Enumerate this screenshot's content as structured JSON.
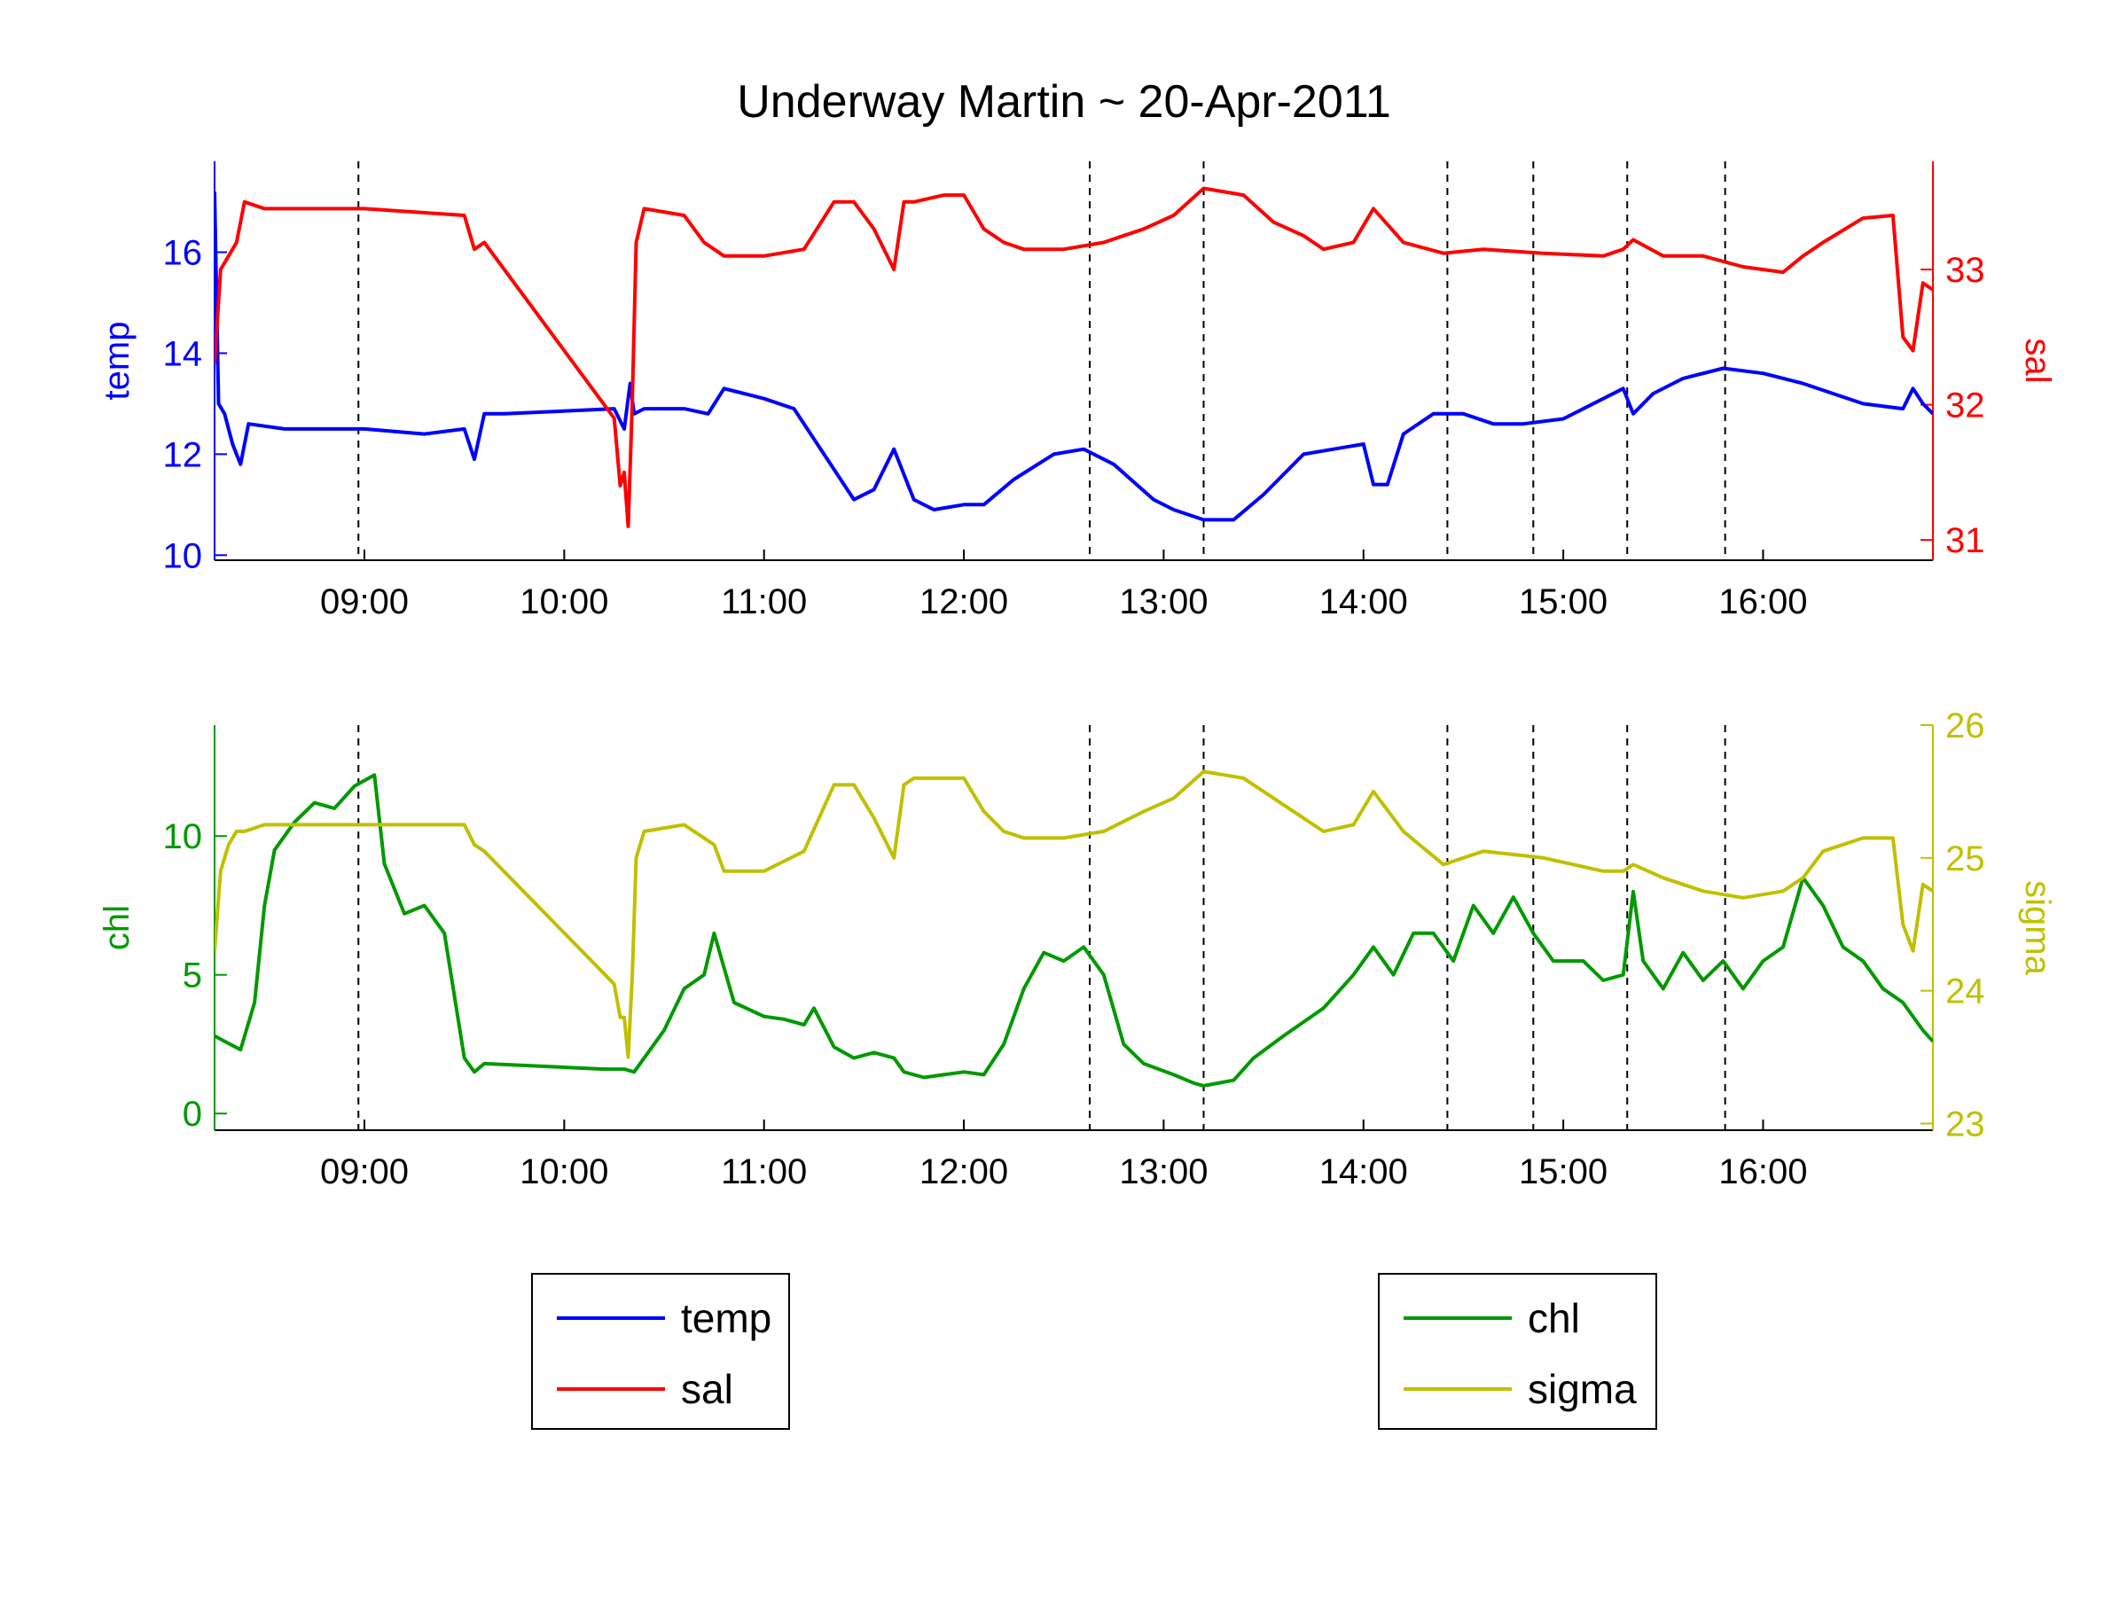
{
  "chart_data": {
    "type": "line",
    "title": "Underway Martin ~ 20-Apr-2011",
    "x_range_hours": [
      8.25,
      16.85
    ],
    "x_ticks": [
      "09:00",
      "10:00",
      "11:00",
      "12:00",
      "13:00",
      "14:00",
      "15:00",
      "16:00"
    ],
    "x_tick_hours": [
      9,
      10,
      11,
      12,
      13,
      14,
      15,
      16
    ],
    "event_markers_hours": [
      8.97,
      12.63,
      13.2,
      14.42,
      14.85,
      15.32,
      15.81
    ],
    "panels": [
      {
        "left_axis": {
          "label": "temp",
          "color": "#0000ff",
          "ylim": [
            9.9,
            17.8
          ],
          "ticks": [
            10,
            12,
            14,
            16
          ]
        },
        "right_axis": {
          "label": "sal",
          "color": "#ff0000",
          "ylim": [
            30.85,
            33.8
          ],
          "ticks": [
            31,
            32,
            33
          ]
        },
        "series": [
          {
            "name": "temp",
            "axis": "left",
            "color": "#0000ff",
            "x": [
              8.25,
              8.27,
              8.3,
              8.34,
              8.38,
              8.42,
              8.6,
              9.0,
              9.3,
              9.5,
              9.55,
              9.6,
              9.7,
              10.25,
              10.3,
              10.33,
              10.35,
              10.4,
              10.6,
              10.72,
              10.8,
              10.9,
              11.0,
              11.15,
              11.3,
              11.45,
              11.55,
              11.65,
              11.75,
              11.85,
              12.0,
              12.1,
              12.25,
              12.45,
              12.6,
              12.75,
              12.95,
              13.05,
              13.2,
              13.35,
              13.5,
              13.7,
              13.85,
              14.0,
              14.05,
              14.12,
              14.2,
              14.35,
              14.5,
              14.65,
              14.8,
              15.0,
              15.2,
              15.3,
              15.35,
              15.45,
              15.6,
              15.8,
              16.0,
              16.2,
              16.5,
              16.7,
              16.75,
              16.8,
              16.85
            ],
            "y": [
              17.2,
              13.0,
              12.8,
              12.2,
              11.8,
              12.6,
              12.5,
              12.5,
              12.4,
              12.5,
              11.9,
              12.8,
              12.8,
              12.9,
              12.5,
              13.4,
              12.8,
              12.9,
              12.9,
              12.8,
              13.3,
              13.2,
              13.1,
              12.9,
              12.0,
              11.1,
              11.3,
              12.1,
              11.1,
              10.9,
              11.0,
              11.0,
              11.5,
              12.0,
              12.1,
              11.8,
              11.1,
              10.9,
              10.7,
              10.7,
              11.2,
              12.0,
              12.1,
              12.2,
              11.4,
              11.4,
              12.4,
              12.8,
              12.8,
              12.6,
              12.6,
              12.7,
              13.1,
              13.3,
              12.8,
              13.2,
              13.5,
              13.7,
              13.6,
              13.4,
              13.0,
              12.9,
              13.3,
              13.0,
              12.8
            ]
          },
          {
            "name": "sal",
            "axis": "right",
            "color": "#ff0000",
            "x": [
              8.25,
              8.28,
              8.32,
              8.36,
              8.4,
              8.5,
              9.0,
              9.5,
              9.55,
              9.6,
              10.25,
              10.28,
              10.3,
              10.32,
              10.34,
              10.36,
              10.4,
              10.6,
              10.7,
              10.75,
              10.8,
              11.0,
              11.2,
              11.35,
              11.45,
              11.55,
              11.65,
              11.7,
              11.75,
              11.9,
              12.0,
              12.1,
              12.2,
              12.3,
              12.5,
              12.7,
              12.9,
              13.05,
              13.2,
              13.4,
              13.55,
              13.7,
              13.8,
              13.95,
              14.05,
              14.2,
              14.4,
              14.6,
              14.9,
              15.2,
              15.3,
              15.35,
              15.5,
              15.7,
              15.9,
              16.1,
              16.2,
              16.3,
              16.5,
              16.65,
              16.7,
              16.75,
              16.8,
              16.85
            ],
            "y": [
              32.3,
              33.0,
              33.1,
              33.2,
              33.5,
              33.45,
              33.45,
              33.4,
              33.15,
              33.2,
              31.9,
              31.4,
              31.5,
              31.1,
              32.0,
              33.2,
              33.45,
              33.4,
              33.2,
              33.15,
              33.1,
              33.1,
              33.15,
              33.5,
              33.5,
              33.3,
              33.0,
              33.5,
              33.5,
              33.55,
              33.55,
              33.3,
              33.2,
              33.15,
              33.15,
              33.2,
              33.3,
              33.4,
              33.6,
              33.55,
              33.35,
              33.25,
              33.15,
              33.2,
              33.45,
              33.2,
              33.12,
              33.15,
              33.12,
              33.1,
              33.15,
              33.22,
              33.1,
              33.1,
              33.02,
              32.98,
              33.1,
              33.2,
              33.38,
              33.4,
              32.5,
              32.4,
              32.9,
              32.85
            ]
          }
        ]
      },
      {
        "left_axis": {
          "label": "chl",
          "color": "#009900",
          "ylim": [
            -0.6,
            14.0
          ],
          "ticks": [
            0,
            5,
            10
          ]
        },
        "right_axis": {
          "label": "sigma",
          "color": "#c0c000",
          "ylim": [
            22.95,
            26.0
          ],
          "ticks": [
            23,
            24,
            25,
            26
          ]
        },
        "series": [
          {
            "name": "chl",
            "axis": "left",
            "color": "#009900",
            "x": [
              8.25,
              8.3,
              8.38,
              8.45,
              8.5,
              8.55,
              8.65,
              8.75,
              8.85,
              8.95,
              9.05,
              9.1,
              9.2,
              9.3,
              9.4,
              9.5,
              9.55,
              9.6,
              10.2,
              10.3,
              10.35,
              10.4,
              10.5,
              10.6,
              10.7,
              10.75,
              10.85,
              11.0,
              11.1,
              11.2,
              11.25,
              11.35,
              11.45,
              11.55,
              11.65,
              11.7,
              11.8,
              11.9,
              12.0,
              12.1,
              12.2,
              12.3,
              12.4,
              12.5,
              12.6,
              12.7,
              12.8,
              12.9,
              13.05,
              13.15,
              13.2,
              13.35,
              13.45,
              13.6,
              13.8,
              13.95,
              14.05,
              14.15,
              14.25,
              14.35,
              14.45,
              14.55,
              14.65,
              14.75,
              14.85,
              14.95,
              15.1,
              15.2,
              15.3,
              15.35,
              15.4,
              15.5,
              15.6,
              15.7,
              15.8,
              15.9,
              16.0,
              16.1,
              16.2,
              16.3,
              16.4,
              16.5,
              16.6,
              16.7,
              16.8,
              16.85
            ],
            "y": [
              2.8,
              2.6,
              2.3,
              4.0,
              7.5,
              9.5,
              10.5,
              11.2,
              11.0,
              11.8,
              12.2,
              9.0,
              7.2,
              7.5,
              6.5,
              2.0,
              1.5,
              1.8,
              1.6,
              1.6,
              1.5,
              2.0,
              3.0,
              4.5,
              5.0,
              6.5,
              4.0,
              3.5,
              3.4,
              3.2,
              3.8,
              2.4,
              2.0,
              2.2,
              2.0,
              1.5,
              1.3,
              1.4,
              1.5,
              1.4,
              2.5,
              4.5,
              5.8,
              5.5,
              6.0,
              5.0,
              2.5,
              1.8,
              1.4,
              1.1,
              1.0,
              1.2,
              2.0,
              2.8,
              3.8,
              5.0,
              6.0,
              5.0,
              6.5,
              6.5,
              5.5,
              7.5,
              6.5,
              7.8,
              6.5,
              5.5,
              5.5,
              4.8,
              5.0,
              8.0,
              5.5,
              4.5,
              5.8,
              4.8,
              5.5,
              4.5,
              5.5,
              6.0,
              8.5,
              7.5,
              6.0,
              5.5,
              4.5,
              4.0,
              3.0,
              2.6
            ]
          },
          {
            "name": "sigma",
            "axis": "right",
            "color": "#c0c000",
            "x": [
              8.25,
              8.28,
              8.32,
              8.36,
              8.4,
              8.5,
              9.0,
              9.5,
              9.55,
              9.6,
              10.25,
              10.28,
              10.3,
              10.32,
              10.34,
              10.36,
              10.4,
              10.6,
              10.7,
              10.75,
              10.8,
              11.0,
              11.2,
              11.35,
              11.45,
              11.55,
              11.65,
              11.7,
              11.75,
              11.9,
              12.0,
              12.1,
              12.2,
              12.3,
              12.5,
              12.7,
              12.9,
              13.05,
              13.2,
              13.4,
              13.55,
              13.7,
              13.8,
              13.95,
              14.05,
              14.2,
              14.4,
              14.6,
              14.9,
              15.2,
              15.3,
              15.35,
              15.5,
              15.7,
              15.9,
              16.1,
              16.2,
              16.3,
              16.5,
              16.65,
              16.7,
              16.75,
              16.8,
              16.85
            ],
            "y": [
              24.3,
              24.9,
              25.1,
              25.2,
              25.2,
              25.25,
              25.25,
              25.25,
              25.1,
              25.05,
              24.05,
              23.8,
              23.8,
              23.5,
              24.1,
              25.0,
              25.2,
              25.25,
              25.15,
              25.1,
              24.9,
              24.9,
              25.05,
              25.55,
              25.55,
              25.3,
              25.0,
              25.55,
              25.6,
              25.6,
              25.6,
              25.35,
              25.2,
              25.15,
              25.15,
              25.2,
              25.35,
              25.45,
              25.65,
              25.6,
              25.45,
              25.3,
              25.2,
              25.25,
              25.5,
              25.2,
              24.95,
              25.05,
              25.0,
              24.9,
              24.9,
              24.95,
              24.85,
              24.75,
              24.7,
              24.75,
              24.85,
              25.05,
              25.15,
              25.15,
              24.5,
              24.3,
              24.8,
              24.75
            ]
          }
        ]
      }
    ],
    "legends": [
      {
        "entries": [
          {
            "label": "temp",
            "color": "#0000ff"
          },
          {
            "label": "sal",
            "color": "#ff0000"
          }
        ]
      },
      {
        "entries": [
          {
            "label": "chl",
            "color": "#009900"
          },
          {
            "label": "sigma",
            "color": "#c0c000"
          }
        ]
      }
    ],
    "grid": false
  }
}
